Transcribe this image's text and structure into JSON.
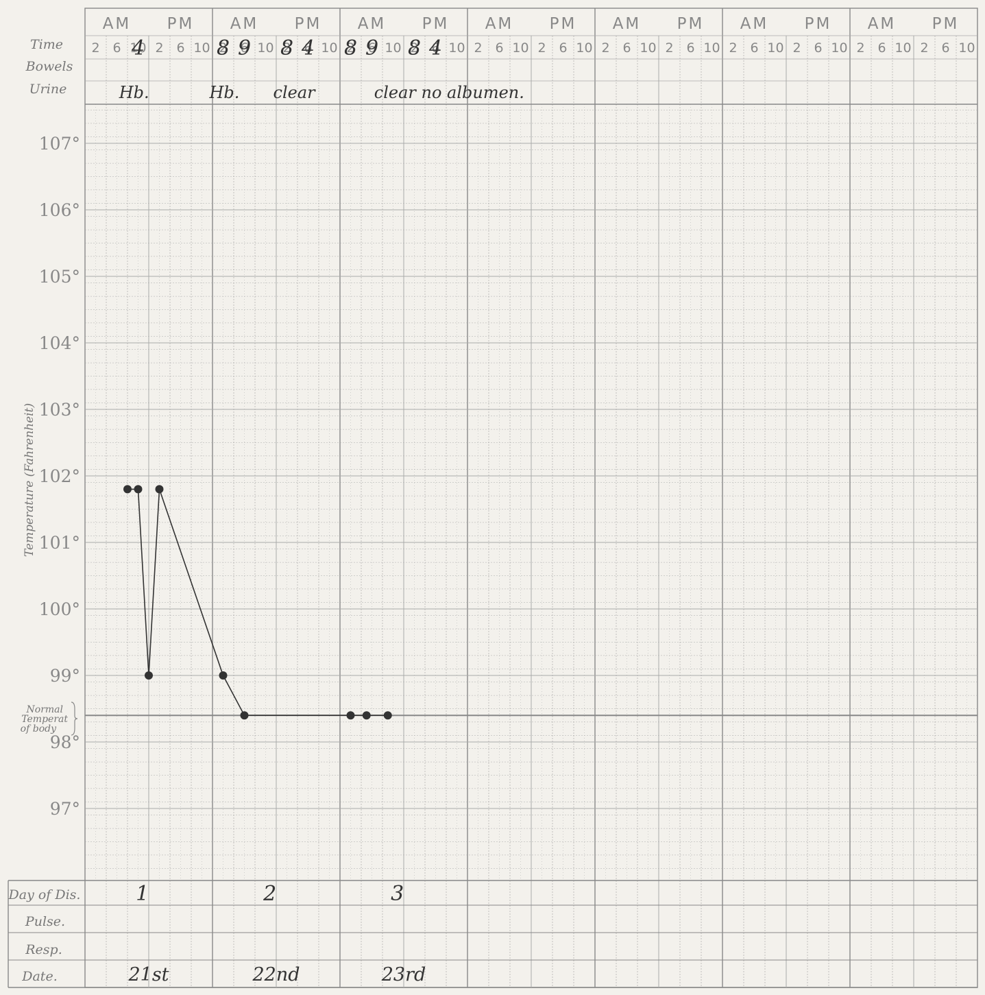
{
  "header": {
    "ampm": [
      "AM",
      "PM"
    ],
    "hours": [
      "2",
      "6",
      "10"
    ],
    "row_labels": {
      "time": "Time",
      "bowels": "Bowels",
      "urine": "Urine"
    }
  },
  "axis": {
    "ylabel": "Temperature (Fahrenheit)",
    "normal_label": [
      "Normal",
      "Temperat",
      "of body"
    ]
  },
  "footer": {
    "row_labels": {
      "day": "Day of Dis.",
      "pulse": "Pulse.",
      "resp": "Resp.",
      "date": "Date."
    }
  },
  "handwriting": {
    "time_entries": [
      {
        "text": "4",
        "day": 0,
        "hour": 10
      },
      {
        "text": "8",
        "day": 1,
        "hour": 2
      },
      {
        "text": "9",
        "day": 1,
        "hour": 6
      },
      {
        "text": "8",
        "day": 1,
        "hour": 14
      },
      {
        "text": "4",
        "day": 1,
        "hour": 18
      },
      {
        "text": "8",
        "day": 2,
        "hour": 2
      },
      {
        "text": "9",
        "day": 2,
        "hour": 6
      },
      {
        "text": "8",
        "day": 2,
        "hour": 14
      },
      {
        "text": "4",
        "day": 2,
        "hour": 18
      }
    ],
    "urine_notes": [
      {
        "text": "Hb.",
        "day": 0,
        "hour": 9
      },
      {
        "text": "Hb.",
        "day": 1,
        "hour": 2
      },
      {
        "text": "clear",
        "day": 1,
        "hour": 14
      },
      {
        "text": "clear no albumen.",
        "day": 2,
        "hour": 9
      }
    ],
    "day_of_disease": [
      {
        "text": "1",
        "day": 0
      },
      {
        "text": "2",
        "day": 1
      },
      {
        "text": "3",
        "day": 2
      }
    ],
    "dates": [
      {
        "text": "21st",
        "day": 0
      },
      {
        "text": "22nd",
        "day": 1
      },
      {
        "text": "23rd",
        "day": 2
      }
    ]
  },
  "chart_data": {
    "type": "line",
    "ylabel": "Temperature (Fahrenheit)",
    "ylim": [
      96,
      107.5
    ],
    "yticks": [
      97,
      98,
      99,
      100,
      101,
      102,
      103,
      104,
      105,
      106,
      107
    ],
    "tick_suffix": "°",
    "normal_temperature": 98.4,
    "days_shown": 7,
    "grid": true,
    "series": [
      {
        "points": [
          {
            "day": 0,
            "hour": 8,
            "temp": 101.8
          },
          {
            "day": 0,
            "hour": 10,
            "temp": 101.8
          },
          {
            "day": 0,
            "hour": 12,
            "temp": 99.0
          },
          {
            "day": 0,
            "hour": 14,
            "temp": 101.8
          },
          {
            "day": 1,
            "hour": 2,
            "temp": 99.0
          },
          {
            "day": 1,
            "hour": 6,
            "temp": 98.4
          },
          {
            "day": 2,
            "hour": 2,
            "temp": 98.4
          },
          {
            "day": 2,
            "hour": 5,
            "temp": 98.4
          },
          {
            "day": 2,
            "hour": 9,
            "temp": 98.4
          }
        ]
      }
    ]
  },
  "colors": {
    "grid": "#aaaaaa",
    "grid_major": "#888888",
    "ink": "#333333",
    "paper": "#f3f1ec"
  }
}
